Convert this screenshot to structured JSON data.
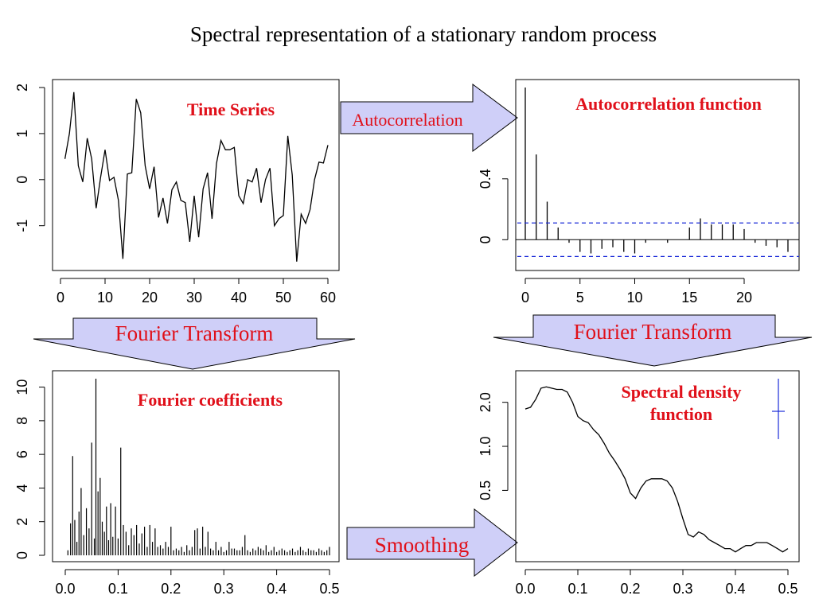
{
  "slide": {
    "title": "Spectral representation of a stationary random process",
    "arrows": {
      "autocorrelation": "Autocorrelation",
      "fourier_left": "Fourier Transform",
      "fourier_right": "Fourier Transform",
      "smoothing": "Smoothing"
    },
    "arrow_fill": "#cfcff8",
    "label_color": "#e0101a"
  },
  "chart_data": [
    {
      "id": "time-series",
      "type": "line",
      "annotation": "Time Series",
      "xlim": [
        0,
        60
      ],
      "ylim": [
        -1.8,
        2.0
      ],
      "xticks": [
        0,
        10,
        20,
        30,
        40,
        50,
        60
      ],
      "yticks": [
        -1,
        0,
        1,
        2
      ],
      "x": [
        1,
        2,
        3,
        4,
        5,
        6,
        7,
        8,
        9,
        10,
        11,
        12,
        13,
        14,
        15,
        16,
        17,
        18,
        19,
        20,
        21,
        22,
        23,
        24,
        25,
        26,
        27,
        28,
        29,
        30,
        31,
        32,
        33,
        34,
        35,
        36,
        37,
        38,
        39,
        40,
        41,
        42,
        43,
        44,
        45,
        46,
        47,
        48,
        49,
        50,
        51,
        52,
        53,
        54,
        55,
        56,
        57,
        58,
        59,
        60
      ],
      "values": [
        0.45,
        1.0,
        1.9,
        0.3,
        -0.05,
        0.9,
        0.45,
        -0.62,
        0.05,
        0.65,
        -0.02,
        0.05,
        -0.45,
        -1.72,
        0.12,
        0.15,
        1.75,
        1.45,
        0.3,
        -0.2,
        0.28,
        -0.82,
        -0.4,
        -0.95,
        -0.22,
        -0.05,
        -0.45,
        -0.5,
        -1.35,
        -0.35,
        -1.25,
        -0.2,
        0.15,
        -0.85,
        0.35,
        0.85,
        0.65,
        0.65,
        0.7,
        -0.35,
        -0.52,
        0.0,
        -0.05,
        0.25,
        -0.5,
        0.0,
        0.25,
        -1.0,
        -0.85,
        -0.78,
        0.95,
        0.1,
        -1.78,
        -0.75,
        -0.95,
        -0.65,
        0.0,
        0.38,
        0.36,
        0.75
      ]
    },
    {
      "id": "acf",
      "type": "bar",
      "annotation": "Autocorrelation function",
      "xlim": [
        0,
        24
      ],
      "ylim": [
        -0.15,
        1.0
      ],
      "xticks": [
        0,
        5,
        10,
        15,
        20
      ],
      "yticks": [
        0.0,
        0.4
      ],
      "conf_band": 0.11,
      "lags": [
        0,
        1,
        2,
        3,
        4,
        5,
        6,
        7,
        8,
        9,
        10,
        11,
        12,
        13,
        14,
        15,
        16,
        17,
        18,
        19,
        20,
        21,
        22,
        23,
        24
      ],
      "values": [
        1.0,
        0.56,
        0.25,
        0.08,
        -0.02,
        -0.08,
        -0.09,
        -0.06,
        -0.05,
        -0.08,
        -0.09,
        -0.02,
        0.0,
        -0.02,
        0.0,
        0.08,
        0.14,
        0.1,
        0.1,
        0.1,
        0.07,
        -0.02,
        -0.04,
        -0.05,
        -0.08
      ]
    },
    {
      "id": "fourier-coefficients",
      "type": "bar",
      "annotation": "Fourier coefficients",
      "xlim": [
        0,
        0.5
      ],
      "ylim": [
        0,
        10.5
      ],
      "xticks": [
        "0.0",
        "0.1",
        "0.2",
        "0.3",
        "0.4",
        "0.5"
      ],
      "yticks": [
        0,
        2,
        4,
        6,
        8,
        10
      ],
      "frequencies": [
        0.005,
        0.01,
        0.014,
        0.018,
        0.022,
        0.026,
        0.03,
        0.035,
        0.04,
        0.045,
        0.05,
        0.055,
        0.058,
        0.062,
        0.066,
        0.07,
        0.074,
        0.078,
        0.082,
        0.086,
        0.09,
        0.095,
        0.1,
        0.105,
        0.11,
        0.115,
        0.12,
        0.125,
        0.13,
        0.135,
        0.14,
        0.145,
        0.15,
        0.155,
        0.16,
        0.165,
        0.17,
        0.175,
        0.18,
        0.185,
        0.19,
        0.195,
        0.2,
        0.205,
        0.21,
        0.215,
        0.22,
        0.225,
        0.23,
        0.235,
        0.24,
        0.245,
        0.25,
        0.255,
        0.26,
        0.265,
        0.27,
        0.275,
        0.28,
        0.285,
        0.29,
        0.295,
        0.3,
        0.305,
        0.31,
        0.315,
        0.32,
        0.325,
        0.33,
        0.335,
        0.34,
        0.345,
        0.35,
        0.355,
        0.36,
        0.365,
        0.37,
        0.375,
        0.38,
        0.385,
        0.39,
        0.395,
        0.4,
        0.405,
        0.41,
        0.415,
        0.42,
        0.425,
        0.43,
        0.435,
        0.44,
        0.445,
        0.45,
        0.455,
        0.46,
        0.465,
        0.47,
        0.475,
        0.48,
        0.485,
        0.49,
        0.495,
        0.5
      ],
      "values": [
        0.3,
        1.9,
        5.9,
        2.1,
        0.8,
        2.6,
        4.0,
        1.2,
        2.8,
        1.6,
        6.7,
        1.0,
        10.5,
        3.8,
        4.6,
        2.0,
        1.4,
        2.9,
        0.9,
        3.1,
        1.1,
        2.9,
        1.0,
        6.4,
        1.8,
        1.4,
        0.6,
        1.6,
        1.2,
        1.8,
        0.7,
        1.3,
        1.7,
        0.5,
        1.8,
        0.8,
        1.6,
        0.5,
        0.6,
        0.4,
        0.8,
        0.5,
        1.7,
        0.3,
        0.4,
        0.3,
        0.5,
        0.2,
        0.6,
        0.3,
        0.5,
        1.5,
        1.6,
        0.4,
        1.7,
        0.5,
        1.4,
        0.4,
        0.3,
        0.8,
        0.3,
        0.5,
        0.2,
        0.3,
        0.8,
        0.4,
        0.4,
        0.3,
        0.3,
        0.5,
        1.2,
        0.3,
        0.2,
        0.4,
        0.3,
        0.5,
        0.4,
        0.3,
        0.6,
        0.2,
        0.3,
        0.5,
        0.2,
        0.3,
        0.4,
        0.3,
        0.2,
        0.3,
        0.4,
        0.2,
        0.3,
        0.5,
        0.3,
        0.2,
        0.4,
        0.3,
        0.3,
        0.2,
        0.4,
        0.3,
        0.2,
        0.3,
        0.5
      ]
    },
    {
      "id": "spectral-density",
      "type": "line",
      "annotation": "Spectral density function",
      "annotation_lines": [
        "Spectral density",
        "function"
      ],
      "log_y": true,
      "xlim": [
        0,
        0.5
      ],
      "ylim": [
        0.18,
        2.9
      ],
      "xticks": [
        "0.0",
        "0.1",
        "0.2",
        "0.3",
        "0.4",
        "0.5"
      ],
      "yticks": [
        "0.5",
        "1.0",
        "2.0"
      ],
      "x": [
        0.0,
        0.01,
        0.02,
        0.03,
        0.04,
        0.05,
        0.06,
        0.07,
        0.08,
        0.09,
        0.1,
        0.11,
        0.12,
        0.13,
        0.14,
        0.15,
        0.16,
        0.17,
        0.18,
        0.19,
        0.2,
        0.21,
        0.22,
        0.23,
        0.24,
        0.25,
        0.26,
        0.27,
        0.28,
        0.29,
        0.3,
        0.31,
        0.32,
        0.33,
        0.34,
        0.35,
        0.36,
        0.37,
        0.38,
        0.39,
        0.4,
        0.41,
        0.42,
        0.43,
        0.44,
        0.45,
        0.46,
        0.47,
        0.48,
        0.49,
        0.5
      ],
      "values": [
        1.8,
        1.85,
        2.1,
        2.5,
        2.55,
        2.5,
        2.45,
        2.45,
        2.35,
        2.0,
        1.6,
        1.5,
        1.45,
        1.3,
        1.2,
        1.05,
        0.9,
        0.8,
        0.7,
        0.6,
        0.48,
        0.44,
        0.52,
        0.58,
        0.6,
        0.6,
        0.6,
        0.58,
        0.52,
        0.42,
        0.32,
        0.25,
        0.24,
        0.26,
        0.25,
        0.23,
        0.22,
        0.21,
        0.2,
        0.2,
        0.19,
        0.2,
        0.21,
        0.21,
        0.22,
        0.22,
        0.22,
        0.21,
        0.2,
        0.19,
        0.2
      ]
    }
  ]
}
